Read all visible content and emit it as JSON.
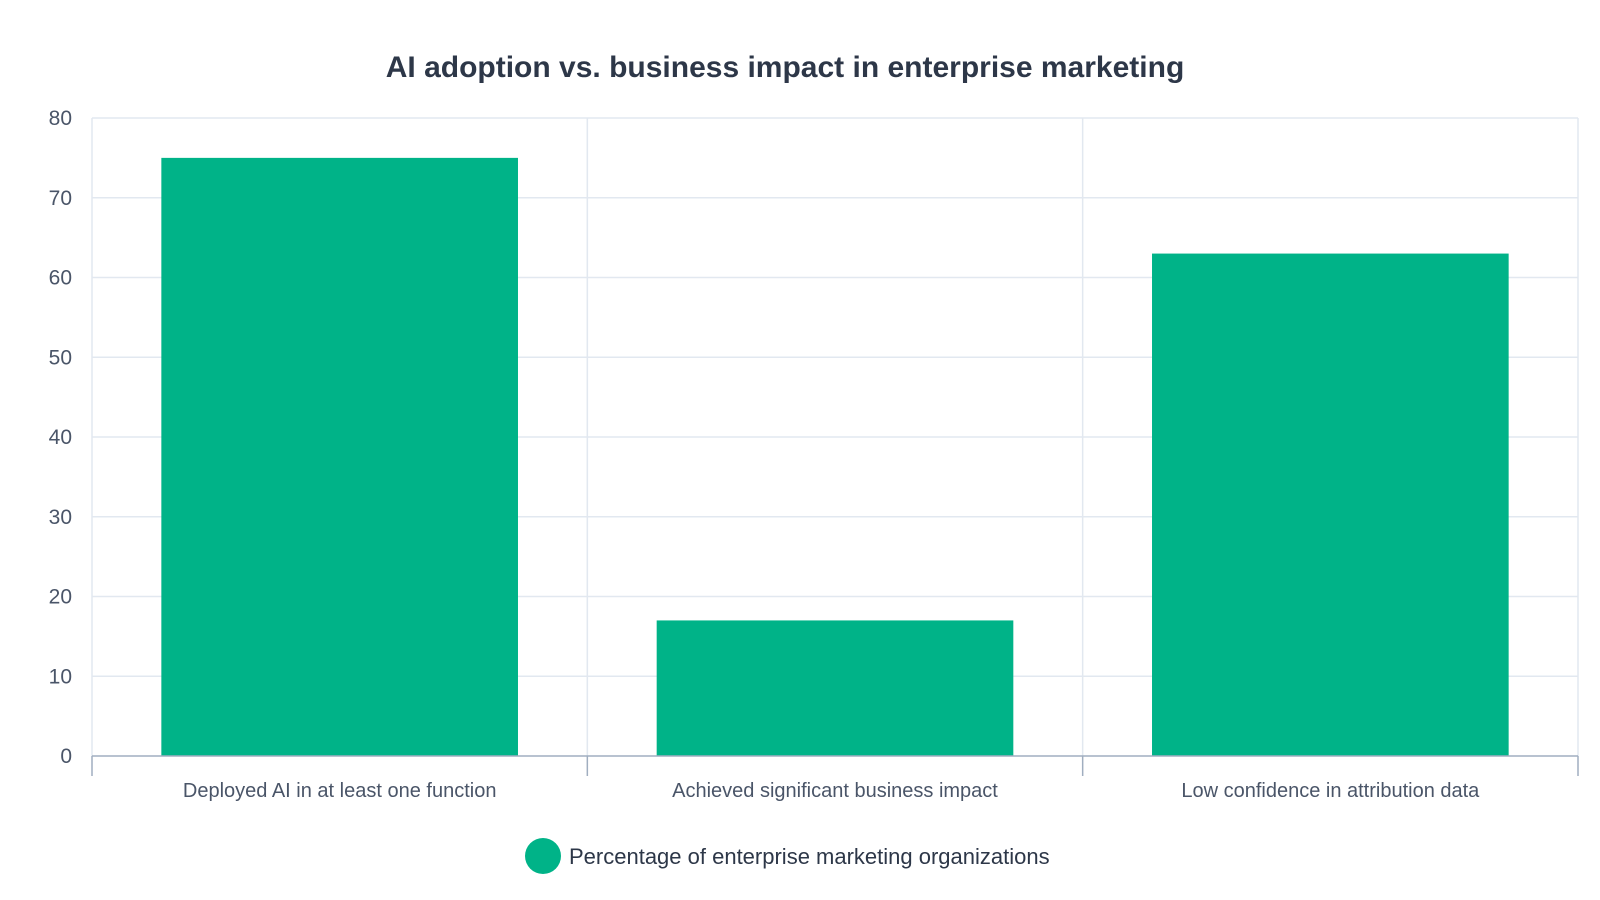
{
  "chart_data": {
    "type": "bar",
    "title": "AI adoption vs. business impact in enterprise marketing",
    "categories": [
      "Deployed AI in at least one function",
      "Achieved significant business impact",
      "Low confidence in attribution data"
    ],
    "series": [
      {
        "name": "Percentage of enterprise marketing organizations",
        "values": [
          75,
          17,
          63
        ],
        "color": "#00b388"
      }
    ],
    "ylim": [
      0,
      80
    ],
    "yticks": [
      0,
      10,
      20,
      30,
      40,
      50,
      60,
      70,
      80
    ],
    "grid": true,
    "legend_position": "bottom-center"
  }
}
